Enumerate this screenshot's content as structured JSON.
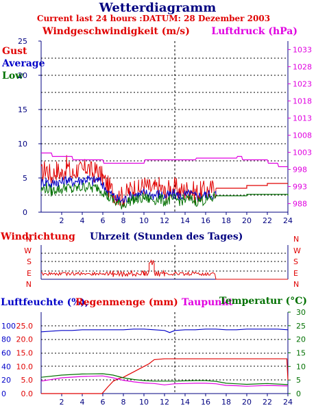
{
  "header": {
    "title": "Wetterdiagramm",
    "subtitle": "Current last 24 hours :DATUM: 28 Dezember 2003"
  },
  "colors": {
    "red": "#e00000",
    "blue": "#0000c8",
    "green": "#007000",
    "magenta": "#e000e0",
    "navy": "#000080",
    "black": "#000000"
  },
  "chart_data": [
    {
      "type": "line",
      "title": "",
      "left_axis_label": "Windgeschwindigkeit (m/s)",
      "right_axis_label": "Luftdruck (hPa)",
      "left_ticks": [
        "0",
        "5",
        "10",
        "15",
        "20",
        "25"
      ],
      "right_ticks": [
        "988",
        "993",
        "998",
        "1003",
        "1008",
        "1013",
        "1018",
        "1023",
        "1028",
        "1033"
      ],
      "x_ticks": [
        "2",
        "4",
        "6",
        "8",
        "10",
        "12",
        "14",
        "16",
        "18",
        "20",
        "22",
        "24"
      ],
      "xlim": [
        0,
        24
      ],
      "ylim_left": [
        0,
        25
      ],
      "ylim_right": [
        985.5,
        1035.5
      ],
      "grid": true,
      "legend": [
        "Gust",
        "Average",
        "Low"
      ],
      "series": [
        {
          "name": "Gust",
          "axis": "left",
          "color": "red",
          "x": [
            0,
            0.5,
            1,
            1.5,
            2,
            2.5,
            3,
            3.5,
            4,
            4.5,
            5,
            5.5,
            6,
            6.5,
            7,
            7.5,
            8,
            8.5,
            9,
            9.5,
            10,
            10.5,
            11,
            11.5,
            12,
            12.5,
            13,
            13.5,
            14,
            14.5,
            15,
            15.5,
            16,
            16.5,
            17,
            18,
            20,
            22,
            24
          ],
          "values": [
            5.5,
            6.5,
            5.2,
            6.2,
            5.6,
            6.8,
            5.3,
            6.4,
            5.8,
            6.7,
            5.7,
            6.1,
            5.0,
            3.8,
            3.0,
            2.4,
            2.2,
            3.0,
            3.6,
            3.2,
            4.0,
            3.5,
            3.3,
            3.8,
            2.8,
            3.4,
            3.6,
            3.0,
            3.2,
            3.4,
            2.8,
            3.0,
            3.1,
            3.3,
            3.5,
            3.5,
            3.9,
            4.2,
            4.2
          ]
        },
        {
          "name": "Average",
          "axis": "left",
          "color": "blue",
          "x": [
            0,
            0.5,
            1,
            1.5,
            2,
            2.5,
            3,
            3.5,
            4,
            4.5,
            5,
            5.5,
            6,
            6.5,
            7,
            7.5,
            8,
            8.5,
            9,
            9.5,
            10,
            10.5,
            11,
            11.5,
            12,
            12.5,
            13,
            13.5,
            14,
            14.5,
            15,
            15.5,
            16,
            16.5,
            17
          ],
          "values": [
            4.2,
            4.6,
            4.0,
            4.5,
            4.3,
            4.8,
            4.4,
            4.6,
            4.7,
            4.9,
            4.5,
            4.8,
            4.0,
            3.0,
            2.4,
            1.8,
            1.7,
            2.2,
            2.6,
            2.5,
            2.8,
            2.6,
            2.5,
            2.7,
            2.3,
            2.5,
            2.6,
            2.4,
            2.5,
            2.6,
            2.3,
            2.4,
            2.5,
            2.6,
            2.6
          ]
        },
        {
          "name": "Low",
          "axis": "left",
          "color": "green",
          "x": [
            0,
            0.5,
            1,
            1.5,
            2,
            2.5,
            3,
            3.5,
            4,
            4.5,
            5,
            5.5,
            6,
            6.5,
            7,
            7.5,
            8,
            8.5,
            9,
            9.5,
            10,
            10.5,
            11,
            11.5,
            12,
            12.5,
            13,
            13.5,
            14,
            14.5,
            15,
            15.5,
            16,
            16.5,
            17,
            18,
            20,
            24
          ],
          "values": [
            3.2,
            3.6,
            3.0,
            3.4,
            3.3,
            3.7,
            3.2,
            3.5,
            3.6,
            3.8,
            3.4,
            3.7,
            3.1,
            2.2,
            1.7,
            1.2,
            1.1,
            1.6,
            1.9,
            1.8,
            2.1,
            1.9,
            1.8,
            2.0,
            1.6,
            1.8,
            1.9,
            1.7,
            1.8,
            1.9,
            1.6,
            1.7,
            1.8,
            1.9,
            2.4,
            2.4,
            2.6,
            2.4
          ]
        },
        {
          "name": "Luftdruck",
          "axis": "right",
          "color": "magenta",
          "x": [
            0,
            1,
            1.1,
            3,
            3.1,
            6,
            6.1,
            7,
            7.1,
            10,
            10.1,
            15,
            15.1,
            19,
            19.1,
            19.5,
            19.6,
            22,
            22.1,
            23,
            23.1,
            24
          ],
          "values": [
            1002.8,
            1002.8,
            1001.8,
            1001.8,
            1000.8,
            1000.8,
            999.8,
            999.8,
            999.8,
            999.8,
            1000.8,
            1000.8,
            1001.3,
            1001.3,
            1001.8,
            1001.8,
            1000.8,
            1000.8,
            999.8,
            999.8,
            998.8,
            998.8
          ]
        }
      ]
    },
    {
      "type": "line",
      "title": "Windrichtung",
      "xlabel": "Uhrzeit (Stunden des Tages)",
      "y_ticks": [
        "N",
        "W",
        "S",
        "E",
        "N"
      ],
      "xlim": [
        0,
        24
      ],
      "grid": true,
      "series": [
        {
          "name": "Windrichtung",
          "color": "red",
          "x": [
            0,
            1,
            2,
            3,
            4,
            5,
            6,
            6.5,
            7,
            8,
            9,
            10,
            10.5,
            11,
            12,
            13,
            14,
            15,
            16,
            17,
            24
          ],
          "values": [
            "S",
            "S",
            "S",
            "S",
            "S",
            "S",
            "S",
            "S",
            "S",
            "S",
            "S",
            "S",
            "W",
            "S",
            "S",
            "S",
            "S",
            "S",
            "S",
            "E",
            "E"
          ]
        }
      ]
    },
    {
      "type": "line",
      "title": "",
      "left_label_1": "Luftfeuchte (%),",
      "left_label_2": "Regenmenge (mm)",
      "dewpoint_label": "Taupunkt",
      "right_label": "Temperatur (°C)",
      "left_ticks_humidity": [
        "0",
        "20",
        "40",
        "60",
        "80",
        "100"
      ],
      "left_ticks_rain": [
        "0.0",
        "5.0",
        "10.0",
        "15.0",
        "20.0",
        "25.0"
      ],
      "right_ticks": [
        "0",
        "5",
        "10",
        "15",
        "20",
        "25",
        "30"
      ],
      "x_ticks": [
        "2",
        "4",
        "6",
        "8",
        "10",
        "12",
        "14",
        "16",
        "18",
        "20",
        "22",
        "24"
      ],
      "xlim": [
        0,
        24
      ],
      "grid": true,
      "series": [
        {
          "name": "Luftfeuchte",
          "axis": "humidity",
          "color": "blue",
          "x": [
            0,
            1,
            2,
            3,
            4,
            5,
            6,
            7,
            8,
            9,
            10,
            11,
            12,
            12.5,
            13,
            14,
            15,
            16,
            17,
            18,
            19,
            20,
            21,
            22,
            23,
            24
          ],
          "values": [
            91,
            92,
            93,
            93,
            94,
            94,
            94,
            94,
            94,
            95,
            95,
            94,
            93,
            90,
            93,
            94,
            94,
            95,
            95,
            94,
            94,
            95,
            95,
            95,
            95,
            94
          ]
        },
        {
          "name": "Regenmenge",
          "axis": "rain",
          "color": "red",
          "x": [
            0,
            5.9,
            6.0,
            6.5,
            7.0,
            7.5,
            8.0,
            8.5,
            9.0,
            9.5,
            10.0,
            10.5,
            11.0,
            12.0,
            23.9,
            24.0
          ],
          "values": [
            0,
            0,
            0.3,
            2.5,
            4.5,
            5.5,
            6.0,
            7.0,
            8.0,
            9.0,
            10.0,
            11.0,
            12.5,
            12.8,
            12.8,
            5.0
          ]
        },
        {
          "name": "Temperatur",
          "axis": "temp",
          "color": "green",
          "x": [
            0,
            2,
            4,
            6,
            7,
            8,
            9,
            10,
            11,
            12,
            13,
            14,
            15,
            16,
            17,
            18,
            19,
            20,
            22,
            24
          ],
          "values": [
            6.0,
            6.8,
            7.2,
            7.3,
            6.8,
            5.8,
            5.2,
            4.8,
            4.6,
            4.6,
            4.6,
            4.7,
            4.8,
            4.8,
            4.5,
            3.8,
            3.6,
            3.4,
            3.7,
            3.3
          ]
        },
        {
          "name": "Taupunkt",
          "axis": "temp",
          "color": "magenta",
          "x": [
            0,
            2,
            4,
            6,
            7,
            8,
            9,
            10,
            11,
            12,
            13,
            14,
            15,
            16,
            17,
            18,
            19,
            20,
            22,
            24
          ],
          "values": [
            4.6,
            5.8,
            6.3,
            6.5,
            5.8,
            4.9,
            4.3,
            3.9,
            3.7,
            3.2,
            3.6,
            3.7,
            3.8,
            3.8,
            3.6,
            3.0,
            2.9,
            2.7,
            3.0,
            2.8
          ]
        }
      ]
    }
  ]
}
